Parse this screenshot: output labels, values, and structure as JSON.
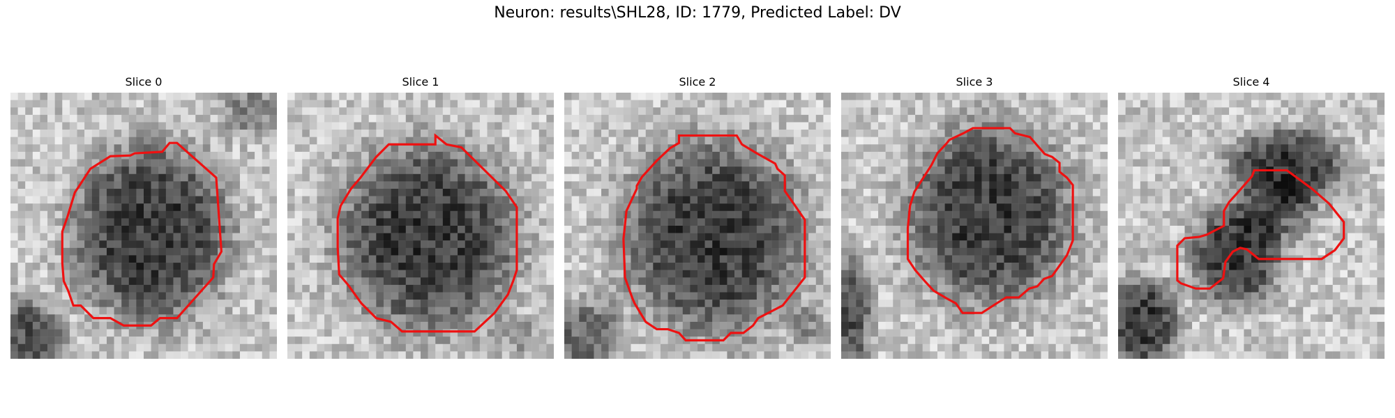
{
  "figure": {
    "title": "Neuron: results\\SHL28, ID: 1779, Predicted Label: DV",
    "contour_color": "#ee1111",
    "colormap": "grayscale"
  },
  "slices": [
    {
      "title": "Slice 0"
    },
    {
      "title": "Slice 1"
    },
    {
      "title": "Slice 2"
    },
    {
      "title": "Slice 3"
    },
    {
      "title": "Slice 4"
    }
  ]
}
